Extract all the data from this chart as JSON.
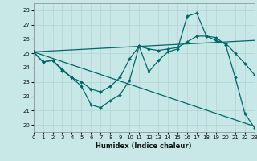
{
  "xlabel": "Humidex (Indice chaleur)",
  "xlim": [
    0,
    23
  ],
  "ylim": [
    19.5,
    28.5
  ],
  "yticks": [
    20,
    21,
    22,
    23,
    24,
    25,
    26,
    27,
    28
  ],
  "xticks": [
    0,
    1,
    2,
    3,
    4,
    5,
    6,
    7,
    8,
    9,
    10,
    11,
    12,
    13,
    14,
    15,
    16,
    17,
    18,
    19,
    20,
    21,
    22,
    23
  ],
  "bg_color": "#c8e8e8",
  "grid_color": "#b0c8c8",
  "line_color": "#006868",
  "lines": [
    {
      "x": [
        0,
        1,
        2,
        3,
        4,
        5,
        6,
        7,
        8,
        9,
        10,
        11,
        12,
        13,
        14,
        15,
        16,
        17,
        18,
        19,
        20,
        21,
        22,
        23
      ],
      "y": [
        25.1,
        24.4,
        24.5,
        23.8,
        23.3,
        22.7,
        21.4,
        21.2,
        21.7,
        22.1,
        23.1,
        25.5,
        23.7,
        24.5,
        25.1,
        25.3,
        27.6,
        27.8,
        26.2,
        26.1,
        25.6,
        23.3,
        20.8,
        19.8
      ],
      "has_marker": true
    },
    {
      "x": [
        0,
        1,
        2,
        3,
        4,
        5,
        6,
        7,
        8,
        9,
        10,
        11,
        12,
        13,
        14,
        15,
        16,
        17,
        18,
        19,
        20,
        21,
        22,
        23
      ],
      "y": [
        25.1,
        24.4,
        24.5,
        23.9,
        23.3,
        23.0,
        22.5,
        22.3,
        22.7,
        23.3,
        24.6,
        25.5,
        25.3,
        25.2,
        25.3,
        25.4,
        25.8,
        26.2,
        26.2,
        25.9,
        25.7,
        25.0,
        24.3,
        23.5
      ],
      "has_marker": true
    },
    {
      "x": [
        0,
        23
      ],
      "y": [
        25.1,
        19.9
      ],
      "has_marker": false
    },
    {
      "x": [
        0,
        23
      ],
      "y": [
        25.1,
        25.9
      ],
      "has_marker": false
    }
  ]
}
